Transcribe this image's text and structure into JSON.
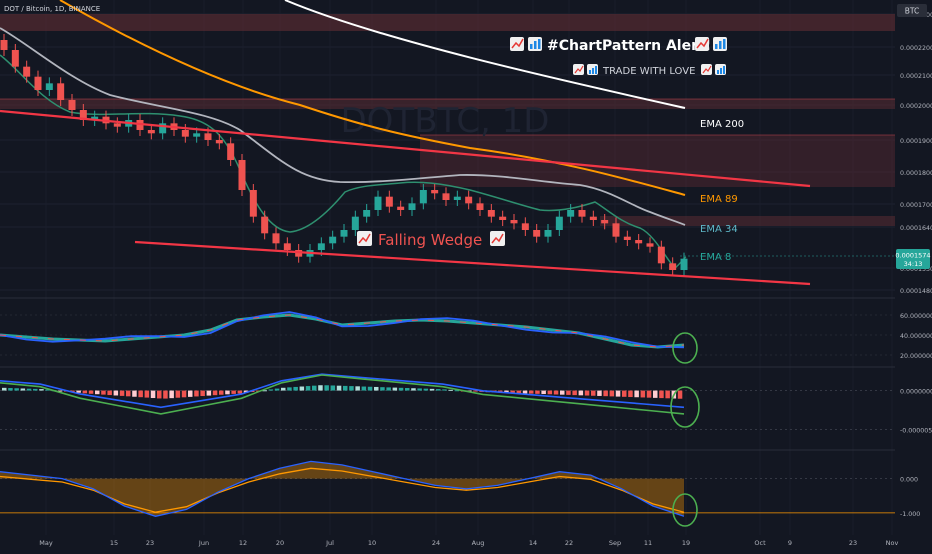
{
  "header": {
    "symbol_title": "DOT / Bitcoin, 1D, BINANCE",
    "currency": "BTC"
  },
  "annotations": {
    "alert_line1": "#ChartPattern Alert!",
    "alert_line2": "TRADE WITH LOVE",
    "pattern_label": "Falling Wedge",
    "watermark": "DOTBTC, 1D",
    "ema200": "EMA 200",
    "ema89": "EMA 89",
    "ema34": "EMA 34",
    "ema8": "EMA 8"
  },
  "colors": {
    "background": "#131722",
    "up_candle": "#26a69a",
    "down_candle": "#ef5350",
    "ema200": "#ffffff",
    "ema89": "#ff9800",
    "ema34": "#b2b5be",
    "ema8": "#26a69a",
    "wedge": "#f23645",
    "zone": "#5a2b33",
    "highlight_circle": "#4caf50",
    "alert_text": "#ffffff",
    "ema89_text": "#ff9800",
    "ema34_text": "#5fb8c8",
    "ema8_text": "#26a69a"
  },
  "price_axis": {
    "ticks": [
      "0.0002300",
      "0.0002200",
      "0.0002100",
      "0.0002000",
      "0.0001900",
      "0.0001800",
      "0.0001700",
      "0.0001640",
      "0.0001530",
      "0.0001480"
    ],
    "current_price": "0.0001574",
    "countdown": "34:13"
  },
  "time_axis": {
    "labels": [
      "May",
      "15",
      "23",
      "Jun",
      "12",
      "20",
      "Jul",
      "10",
      "24",
      "Aug",
      "14",
      "22",
      "Sep",
      "11",
      "19",
      "Oct",
      "9",
      "23",
      "Nov"
    ]
  },
  "indicator_axes": {
    "rsi_ticks": [
      "60.000000",
      "40.000000",
      "20.000000"
    ],
    "macd_ticks": [
      "0.0000000",
      "-0.0000050"
    ],
    "osc_ticks": [
      "0.000",
      "-1.000"
    ]
  },
  "chart_data": [
    {
      "type": "candlestick",
      "title": "DOT / Bitcoin, 1D, BINANCE",
      "x_range": [
        "May",
        "Nov"
      ],
      "ylim": [
        0.000145,
        0.000235
      ],
      "close": [
        0.00022,
        0.000215,
        0.000212,
        0.000208,
        0.00021,
        0.000205,
        0.000202,
        0.000199,
        0.0002,
        0.000198,
        0.000197,
        0.000199,
        0.000196,
        0.000195,
        0.000198,
        0.000196,
        0.000194,
        0.000195,
        0.000193,
        0.000192,
        0.000187,
        0.000178,
        0.00017,
        0.000165,
        0.000162,
        0.00016,
        0.000158,
        0.00016,
        0.000162,
        0.000164,
        0.000166,
        0.00017,
        0.000172,
        0.000176,
        0.000173,
        0.000172,
        0.000174,
        0.000178,
        0.000177,
        0.000175,
        0.000176,
        0.000174,
        0.000172,
        0.00017,
        0.000169,
        0.000168,
        0.000166,
        0.000164,
        0.000166,
        0.00017,
        0.000172,
        0.00017,
        0.000169,
        0.000168,
        0.000164,
        0.000163,
        0.000162,
        0.000161,
        0.000156,
        0.000154,
        0.0001574
      ],
      "ema8_last": 0.000157,
      "ema34_last": 0.000165,
      "ema89_last": 0.000173,
      "ema200_last": 0.0002
    },
    {
      "type": "line",
      "title": "",
      "ylim": [
        10,
        70
      ],
      "series": [
        {
          "values": [
            40,
            38,
            36,
            35,
            34,
            36,
            38,
            40,
            45,
            55,
            58,
            60,
            56,
            50,
            52,
            54,
            55,
            54,
            52,
            50,
            48,
            45,
            42,
            36,
            30,
            28,
            30
          ]
        }
      ]
    },
    {
      "type": "bar",
      "title": "",
      "ylim": [
        -7e-06,
        2e-06
      ],
      "series": [
        {
          "values": [
            1e-06,
            5e-07,
            -1e-06,
            -2e-06,
            -3e-06,
            -2e-06,
            -1e-06,
            1e-06,
            2e-06,
            1.5e-06,
            1e-06,
            5e-07,
            -5e-07,
            -1e-06,
            -1.5e-06,
            -2e-06,
            -2.5e-06,
            -3e-06
          ]
        }
      ]
    },
    {
      "type": "area",
      "title": "",
      "ylim": [
        -1.5,
        0.6
      ],
      "series": [
        {
          "values": [
            0.2,
            0.1,
            0.0,
            -0.3,
            -0.8,
            -1.1,
            -0.9,
            -0.4,
            0.0,
            0.3,
            0.5,
            0.4,
            0.2,
            0.0,
            -0.2,
            -0.3,
            -0.2,
            0.0,
            0.2,
            0.1,
            -0.3,
            -0.8,
            -1.1
          ]
        }
      ]
    }
  ]
}
